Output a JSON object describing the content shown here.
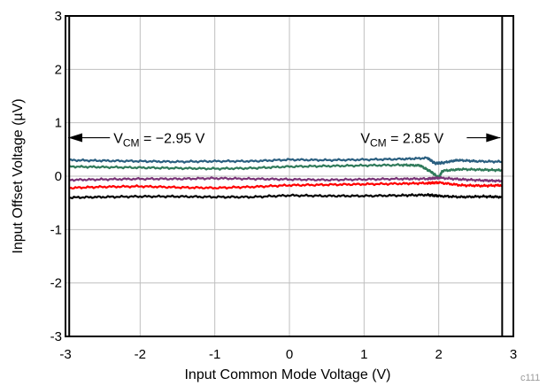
{
  "chart_data": {
    "type": "line",
    "title": "",
    "xlabel": "Input Common Mode Voltage (V)",
    "ylabel": "Input Offset Voltage (µV)",
    "xlim": [
      -3,
      3
    ],
    "ylim": [
      -3,
      3
    ],
    "x_ticks": [
      "-3",
      "-2",
      "-1",
      "0",
      "1",
      "2",
      "3"
    ],
    "y_ticks": [
      "3",
      "2",
      "1",
      "0",
      "-1",
      "-2",
      "-3"
    ],
    "grid": true,
    "code_label": "c111",
    "annotations": [
      {
        "sub_base": "V",
        "sub": "CM",
        "text": " = −2.95 V",
        "x": -2.95,
        "arrow_dir": "left"
      },
      {
        "sub_base": "V",
        "sub": "CM",
        "text": " = 2.85 V",
        "x": 2.85,
        "arrow_dir": "right"
      }
    ],
    "series": [
      {
        "color": "#2a5f80",
        "points": [
          [
            -2.95,
            0.3
          ],
          [
            -2.5,
            0.29
          ],
          [
            -2.0,
            0.28
          ],
          [
            -1.5,
            0.27
          ],
          [
            -1.0,
            0.28
          ],
          [
            -0.5,
            0.28
          ],
          [
            0.0,
            0.31
          ],
          [
            0.5,
            0.3
          ],
          [
            1.0,
            0.31
          ],
          [
            1.5,
            0.32
          ],
          [
            1.85,
            0.34
          ],
          [
            1.95,
            0.24
          ],
          [
            2.05,
            0.25
          ],
          [
            2.25,
            0.3
          ],
          [
            2.5,
            0.28
          ],
          [
            2.85,
            0.27
          ]
        ]
      },
      {
        "color": "#2f7a5a",
        "points": [
          [
            -2.95,
            0.18
          ],
          [
            -2.5,
            0.17
          ],
          [
            -2.0,
            0.16
          ],
          [
            -1.5,
            0.15
          ],
          [
            -1.0,
            0.14
          ],
          [
            -0.5,
            0.15
          ],
          [
            0.0,
            0.18
          ],
          [
            0.5,
            0.19
          ],
          [
            1.0,
            0.2
          ],
          [
            1.5,
            0.21
          ],
          [
            1.75,
            0.2
          ],
          [
            1.9,
            0.08
          ],
          [
            2.0,
            -0.03
          ],
          [
            2.05,
            0.1
          ],
          [
            2.3,
            0.13
          ],
          [
            2.6,
            0.12
          ],
          [
            2.85,
            0.11
          ]
        ]
      },
      {
        "color": "#7a3578",
        "points": [
          [
            -2.95,
            -0.07
          ],
          [
            -2.5,
            -0.06
          ],
          [
            -2.0,
            -0.05
          ],
          [
            -1.5,
            -0.05
          ],
          [
            -1.0,
            -0.04
          ],
          [
            -0.5,
            -0.05
          ],
          [
            0.0,
            -0.06
          ],
          [
            0.5,
            -0.07
          ],
          [
            1.0,
            -0.06
          ],
          [
            1.5,
            -0.05
          ],
          [
            1.85,
            -0.05
          ],
          [
            2.0,
            -0.03
          ],
          [
            2.3,
            -0.06
          ],
          [
            2.6,
            -0.08
          ],
          [
            2.85,
            -0.09
          ]
        ]
      },
      {
        "color": "#ff0000",
        "points": [
          [
            -2.95,
            -0.22
          ],
          [
            -2.5,
            -0.2
          ],
          [
            -2.0,
            -0.19
          ],
          [
            -1.5,
            -0.21
          ],
          [
            -1.0,
            -0.22
          ],
          [
            -0.5,
            -0.2
          ],
          [
            0.0,
            -0.17
          ],
          [
            0.5,
            -0.16
          ],
          [
            1.0,
            -0.15
          ],
          [
            1.5,
            -0.14
          ],
          [
            1.85,
            -0.13
          ],
          [
            2.0,
            -0.12
          ],
          [
            2.3,
            -0.17
          ],
          [
            2.6,
            -0.18
          ],
          [
            2.85,
            -0.17
          ]
        ]
      },
      {
        "color": "#000000",
        "points": [
          [
            -2.95,
            -0.4
          ],
          [
            -2.5,
            -0.39
          ],
          [
            -2.0,
            -0.38
          ],
          [
            -1.5,
            -0.38
          ],
          [
            -1.0,
            -0.39
          ],
          [
            -0.5,
            -0.39
          ],
          [
            0.0,
            -0.36
          ],
          [
            0.5,
            -0.37
          ],
          [
            1.0,
            -0.37
          ],
          [
            1.5,
            -0.36
          ],
          [
            1.85,
            -0.35
          ],
          [
            2.0,
            -0.37
          ],
          [
            2.3,
            -0.39
          ],
          [
            2.6,
            -0.38
          ],
          [
            2.85,
            -0.39
          ]
        ]
      }
    ]
  }
}
